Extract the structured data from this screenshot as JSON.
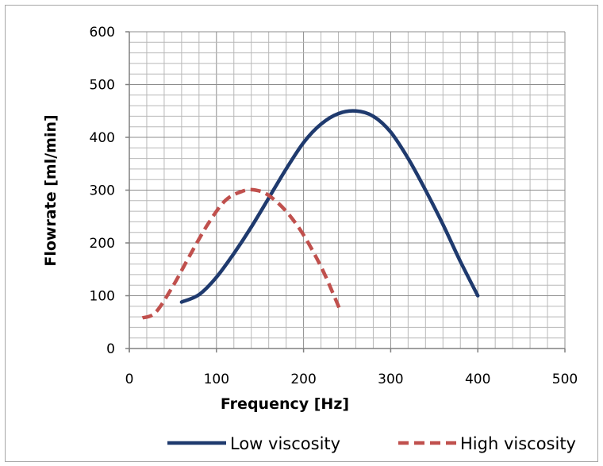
{
  "chart_data": {
    "type": "line",
    "title": "",
    "xlabel": "Frequency [Hz]",
    "ylabel": "Flowrate [ml/min]",
    "xlim": [
      0,
      500
    ],
    "ylim": [
      0,
      600
    ],
    "xticks": [
      0,
      100,
      200,
      300,
      400,
      500
    ],
    "yticks": [
      0,
      100,
      200,
      300,
      400,
      500,
      600
    ],
    "x_minor_step": 20,
    "y_minor_step": 20,
    "grid": true,
    "legend_position": "bottom",
    "series": [
      {
        "name": "Low viscosity",
        "color": "#1f3a6e",
        "style": "solid",
        "points": [
          [
            60,
            88
          ],
          [
            80,
            102
          ],
          [
            100,
            135
          ],
          [
            120,
            180
          ],
          [
            140,
            230
          ],
          [
            160,
            285
          ],
          [
            180,
            340
          ],
          [
            200,
            390
          ],
          [
            220,
            425
          ],
          [
            240,
            445
          ],
          [
            260,
            450
          ],
          [
            280,
            440
          ],
          [
            300,
            410
          ],
          [
            320,
            360
          ],
          [
            340,
            300
          ],
          [
            360,
            235
          ],
          [
            380,
            165
          ],
          [
            400,
            100
          ]
        ]
      },
      {
        "name": "High viscosity",
        "color": "#c0504d",
        "style": "dashed",
        "points": [
          [
            15,
            58
          ],
          [
            30,
            68
          ],
          [
            50,
            118
          ],
          [
            70,
            178
          ],
          [
            90,
            235
          ],
          [
            110,
            280
          ],
          [
            130,
            298
          ],
          [
            145,
            300
          ],
          [
            160,
            290
          ],
          [
            180,
            260
          ],
          [
            200,
            215
          ],
          [
            220,
            155
          ],
          [
            235,
            100
          ],
          [
            243,
            68
          ]
        ]
      }
    ]
  }
}
